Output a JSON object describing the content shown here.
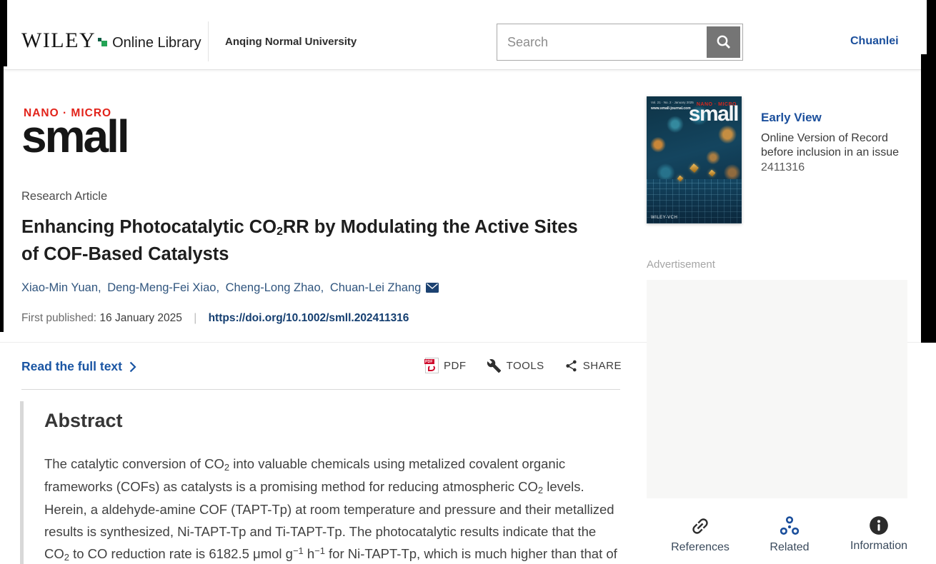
{
  "header": {
    "brand_name": "WILEY",
    "brand_suffix": "Online Library",
    "institution": "Anqing Normal University",
    "search": {
      "placeholder": "Search"
    },
    "user_name": "Chuanlei"
  },
  "journal_logo": {
    "tagline": "NANO · MICRO",
    "name": "small"
  },
  "article": {
    "type_label": "Research Article",
    "title_segments": [
      {
        "t": "Enhancing Photocatalytic CO"
      },
      {
        "t": "2",
        "s": "sub"
      },
      {
        "t": "RR by Modulating the Active Sites of COF-Based Catalysts"
      }
    ],
    "authors": [
      "Xiao-Min Yuan,",
      "Deng-Meng-Fei Xiao,",
      "Cheng-Long Zhao,",
      "Chuan-Lei Zhang"
    ],
    "published": {
      "label": "First published:",
      "date": "16 January 2025",
      "divider": "|",
      "doi": "https://doi.org/10.1002/smll.202411316"
    },
    "read_full_text_label": "Read the full text",
    "actions": {
      "pdf_label": "PDF",
      "tools_label": "TOOLS",
      "share_label": "SHARE"
    }
  },
  "abstract": {
    "heading": "Abstract",
    "body_segments": [
      {
        "t": "The catalytic conversion of CO"
      },
      {
        "t": "2",
        "s": "sub"
      },
      {
        "t": " into valuable chemicals using metalized covalent organic frameworks (COFs) as catalysts is a promising method for reducing atmospheric CO"
      },
      {
        "t": "2",
        "s": "sub"
      },
      {
        "t": " levels. Herein, a aldehyde-amine COF (TAPT-Tp) at room temperature and pressure and their metallized results is synthesized, Ni-TAPT-Tp and Ti-TAPT-Tp. The photocatalytic results indicate that the CO"
      },
      {
        "t": "2",
        "s": "sub"
      },
      {
        "t": " to CO reduction rate is 6182.5 μmol g"
      },
      {
        "t": "−1",
        "s": "sup"
      },
      {
        "t": " h"
      },
      {
        "t": "−1",
        "s": "sup"
      },
      {
        "t": " for Ni-TAPT-Tp, which is much higher than that of TAPT-Tp"
      }
    ]
  },
  "sidebar": {
    "issue_box": {
      "cover_tagline": "NANO · MICRO",
      "cover_title": "small",
      "cover_url": "www.small-journal.com",
      "cover_publisher": "WILEY-VCH",
      "early_view_label": "Early View",
      "version_line1": "Online Version of Record",
      "version_line2": "before inclusion in an issue",
      "article_number": "2411316"
    },
    "advertisement_label": "Advertisement",
    "nav_items": [
      {
        "label": "References",
        "icon": "link-icon"
      },
      {
        "label": "Related",
        "icon": "molecule-icon"
      },
      {
        "label": "Information",
        "icon": "info-icon"
      }
    ]
  },
  "colors": {
    "link_blue": "#1b4f9c",
    "read_link_blue": "#1a55a3",
    "doi_navy": "#143e70",
    "logo_red": "#e2231a",
    "wiley_green_dark": "#0d5c43",
    "wiley_green": "#23a455",
    "pdf_red": "#cf0a2c",
    "search_button_gray": "#757575",
    "ad_background": "#f7f7f6"
  }
}
